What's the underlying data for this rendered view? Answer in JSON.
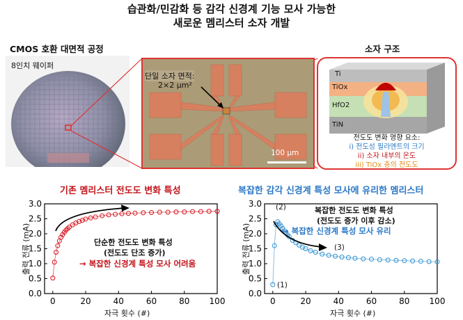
{
  "title": {
    "line1": "습관화/민감화 등 감각 신경계 기능 모사 가능한",
    "line2": "새로운 멤리스터 소자 개발"
  },
  "wafer": {
    "heading": "CMOS 호환 대면적 공정",
    "label": "8인치 웨이퍼"
  },
  "micrograph": {
    "label_line1": "단일 소자 면적:",
    "label_line2": "2×2 μm²",
    "scale": "100 μm"
  },
  "structure": {
    "heading": "소자 구조",
    "layers": [
      "Ti",
      "TiOx",
      "HfO2",
      "TiN"
    ],
    "factors_title": "전도도 변화 영향 요소:",
    "factor1": "i) 전도성 필라멘트의 크기",
    "factor2": "ii) 소자 내부의 온도",
    "factor3": "iii) TiOx 층의 전도도",
    "colors": {
      "ti": "#bdbdbd",
      "tiox": "#f4b183",
      "hfo2": "#c5e0b4",
      "tin": "#a6a6a6"
    }
  },
  "charts": {
    "left_heading": "기존 멤리스터 전도도 변화 특성",
    "right_heading": "복잡한 감각 신경계 특성 모사에 유리한 멤리스터",
    "ylabel": "출력 전류 (mA)",
    "xlabel": "자극 횟수 (#)",
    "left_note1": "단순한 전도도 변화 특성",
    "left_note2": "(전도도 단조 증가)",
    "left_note3": "→ 복잡한 신경계 특성 모사 어려움",
    "right_note1": "복잡한 전도도 변화 특성",
    "right_note2": "(전도도 증가 이후 감소)",
    "right_note3": "→ 복잡한 신경계 특성 모사 유리",
    "mark1": "(1)",
    "mark2": "(2)",
    "mark3": "(3)"
  },
  "chart_data": [
    {
      "type": "scatter",
      "title": "기존 멤리스터 전도도 변화 특성",
      "xlabel": "자극 횟수 (#)",
      "ylabel": "출력 전류 (mA)",
      "xlim": [
        -5,
        100
      ],
      "ylim": [
        0,
        3.0
      ],
      "xticks": [
        "0",
        "20",
        "40",
        "60",
        "80",
        "100"
      ],
      "yticks": [
        "0.0",
        "0.5",
        "1.0",
        "1.5",
        "2.0",
        "2.5",
        "3.0"
      ],
      "color": "#d6101a",
      "x": [
        0,
        1,
        2,
        3,
        4,
        5,
        6,
        7,
        8,
        9,
        10,
        12,
        14,
        16,
        18,
        20,
        23,
        26,
        30,
        34,
        38,
        42,
        46,
        50,
        55,
        60,
        65,
        70,
        75,
        80,
        85,
        90,
        95,
        100
      ],
      "y": [
        0.52,
        1.05,
        1.38,
        1.6,
        1.76,
        1.88,
        1.97,
        2.05,
        2.12,
        2.17,
        2.22,
        2.3,
        2.36,
        2.41,
        2.45,
        2.49,
        2.53,
        2.56,
        2.6,
        2.63,
        2.65,
        2.67,
        2.68,
        2.69,
        2.7,
        2.71,
        2.72,
        2.72,
        2.73,
        2.73,
        2.74,
        2.74,
        2.75,
        2.75
      ]
    },
    {
      "type": "scatter",
      "title": "복잡한 감각 신경계 특성 모사에 유리한 멤리스터",
      "xlabel": "자극 횟수 (#)",
      "ylabel": "출력 전류 (mA)",
      "xlim": [
        -5,
        100
      ],
      "ylim": [
        0,
        3.0
      ],
      "xticks": [
        "0",
        "20",
        "40",
        "60",
        "80",
        "100"
      ],
      "yticks": [
        "0.0",
        "0.5",
        "1.0",
        "1.5",
        "2.0",
        "2.5",
        "3.0"
      ],
      "color": "#2e90d1",
      "x": [
        0,
        1,
        2,
        3,
        4,
        5,
        6,
        7,
        8,
        9,
        10,
        12,
        14,
        16,
        18,
        20,
        23,
        26,
        30,
        34,
        38,
        42,
        46,
        50,
        55,
        60,
        65,
        70,
        75,
        80,
        85,
        90,
        95,
        100
      ],
      "y": [
        0.3,
        1.6,
        2.3,
        2.4,
        2.33,
        2.26,
        2.18,
        2.1,
        2.03,
        1.96,
        1.9,
        1.78,
        1.7,
        1.62,
        1.55,
        1.5,
        1.43,
        1.38,
        1.32,
        1.28,
        1.25,
        1.22,
        1.2,
        1.18,
        1.16,
        1.15,
        1.13,
        1.12,
        1.11,
        1.1,
        1.09,
        1.08,
        1.07,
        1.06
      ]
    }
  ]
}
